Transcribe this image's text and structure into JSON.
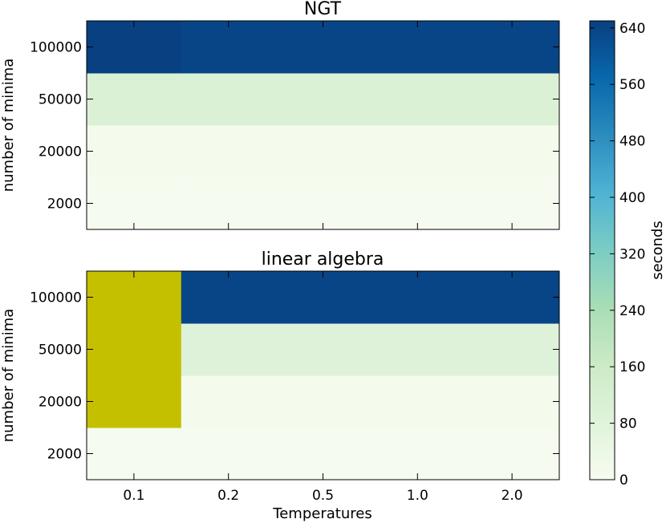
{
  "chart_data": [
    {
      "type": "heatmap",
      "title": "NGT",
      "xlabel": "",
      "ylabel": "number of minima",
      "x_categories": [
        "0.1",
        "0.2",
        "0.5",
        "1.0",
        "2.0"
      ],
      "y_categories": [
        "2000",
        "20000",
        "50000",
        "100000"
      ],
      "values": [
        [
          5,
          5,
          5,
          5,
          5
        ],
        [
          12,
          12,
          12,
          12,
          12
        ],
        [
          100,
          100,
          100,
          100,
          100
        ],
        [
          650,
          640,
          640,
          640,
          640
        ]
      ],
      "missing_color": "#c4c000",
      "missing_cells": []
    },
    {
      "type": "heatmap",
      "title": "linear algebra",
      "xlabel": "Temperatures",
      "ylabel": "number of minima",
      "x_categories": [
        "0.1",
        "0.2",
        "0.5",
        "1.0",
        "2.0"
      ],
      "y_categories": [
        "2000",
        "20000",
        "50000",
        "100000"
      ],
      "values": [
        [
          8,
          5,
          5,
          5,
          5
        ],
        [
          null,
          12,
          12,
          12,
          12
        ],
        [
          null,
          90,
          90,
          90,
          90
        ],
        [
          null,
          640,
          640,
          640,
          640
        ]
      ],
      "missing_color": "#c4c000",
      "missing_cells": [
        [
          1,
          0
        ],
        [
          2,
          0
        ],
        [
          3,
          0
        ]
      ]
    }
  ],
  "colorbar": {
    "label": "seconds",
    "range": [
      0,
      650
    ],
    "ticks": [
      "0",
      "80",
      "160",
      "240",
      "320",
      "400",
      "480",
      "560",
      "640"
    ],
    "colormap": "GnBu",
    "color_stops": [
      "#f7fcf0",
      "#e0f3db",
      "#ccebc5",
      "#a8ddb5",
      "#7bccc4",
      "#4eb3d3",
      "#2b8cbe",
      "#0868ac",
      "#084081"
    ]
  }
}
